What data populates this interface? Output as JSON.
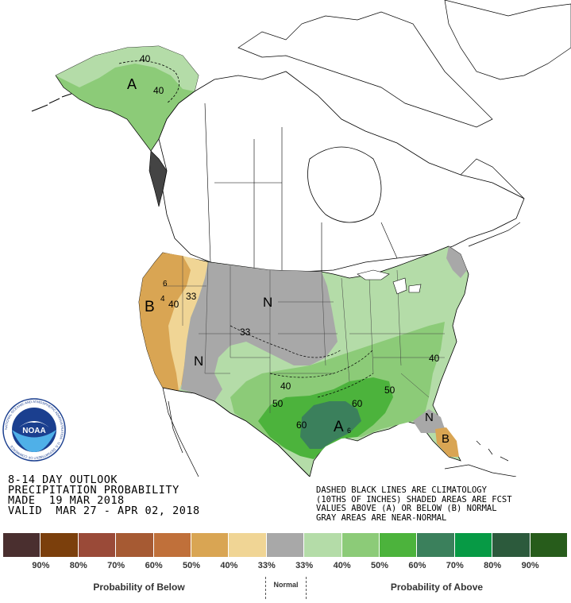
{
  "map": {
    "labels": {
      "alaska_letter": "A",
      "alaska_value_top": "40",
      "alaska_value": "40",
      "west_letter": "B",
      "west_value_40": "40",
      "west_value_33": "33",
      "west_value_small": "4",
      "west_value_small2": "6",
      "plains_letter_n": "N",
      "plains_value_33": "33",
      "southwest_letter_n": "N",
      "south_value_40": "40",
      "south_value_50a": "50",
      "south_value_60": "60",
      "south_letter_a": "A",
      "south_value_60b": "60",
      "southeast_value_50": "50",
      "east_value_40": "40",
      "florida_letter_n": "N",
      "florida_letter_b": "B",
      "south_value_6": "6"
    }
  },
  "title": {
    "line1": "8-14 DAY OUTLOOK",
    "line2": "PRECIPITATION PROBABILITY",
    "line3": "MADE  19 MAR 2018",
    "line4": "VALID  MAR 27 - APR 02, 2018"
  },
  "notes": {
    "line1": "DASHED BLACK LINES ARE CLIMATOLOGY",
    "line2": "(10THS OF INCHES) SHADED AREAS ARE FCST",
    "line3": "VALUES ABOVE (A) OR BELOW (B) NORMAL",
    "line4": "GRAY AREAS ARE NEAR-NORMAL"
  },
  "legend": {
    "swatches": [
      "#4a2f2f",
      "#7b3f0c",
      "#9a4a38",
      "#a65a33",
      "#c0703a",
      "#d9a553",
      "#f0d595",
      "#a8a8a8",
      "#b4dca8",
      "#8ccb78",
      "#4cb33c",
      "#3b805c",
      "#079a45",
      "#2c5a3c",
      "#275c1b"
    ],
    "tick_labels": [
      "90%",
      "80%",
      "70%",
      "60%",
      "50%",
      "40%",
      "33%",
      "33%",
      "40%",
      "50%",
      "60%",
      "70%",
      "80%",
      "90%"
    ],
    "below_label": "Probability of Below",
    "normal_label": "Normal",
    "above_label": "Probability of Above"
  },
  "logo": {
    "text": "NOAA",
    "ring_text": "NATIONAL OCEANIC AND ATMOSPHERIC ADMINISTRATION · U.S. DEPARTMENT OF COMMERCE"
  },
  "colors": {
    "above_40": "#b4dca8",
    "above_50": "#8ccb78",
    "above_60": "#4cb33c",
    "above_70": "#3b805c",
    "below_33": "#f0d595",
    "below_40": "#d9a553",
    "normal": "#a8a8a8",
    "alaska": "#8ccb78"
  }
}
